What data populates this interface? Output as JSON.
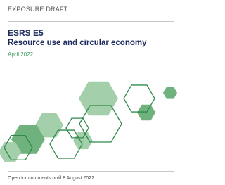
{
  "header": {
    "label": "EXPOSURE DRAFT"
  },
  "title": {
    "code": "ESRS E5",
    "name": "Resource use and circular economy",
    "date": "April 2022"
  },
  "footer": {
    "note": "Open for comments until 8 August 2022"
  }
}
